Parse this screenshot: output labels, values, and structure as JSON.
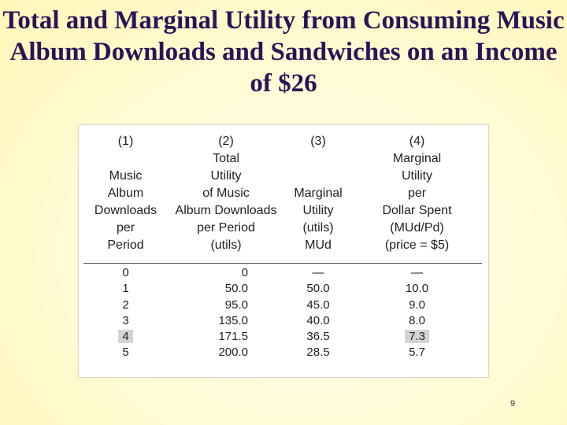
{
  "title": "Total and Marginal Utility from Consuming Music Album Downloads and Sandwiches on an Income of $26",
  "table": {
    "columns": [
      {
        "number": "(1)",
        "lines": [
          "",
          "Music",
          "Album",
          "Downloads",
          "per",
          "Period"
        ]
      },
      {
        "number": "(2)",
        "lines": [
          "Total",
          "Utility",
          "of Music",
          "Album Downloads",
          "per Period",
          "(utils)"
        ]
      },
      {
        "number": "(3)",
        "lines": [
          "",
          "",
          "Marginal",
          "Utility",
          "(utils)",
          "MUd"
        ]
      },
      {
        "number": "(4)",
        "lines": [
          "Marginal",
          "Utility",
          "per",
          "Dollar Spent",
          "(MUd/Pd)",
          "(price = $5)"
        ]
      }
    ],
    "rows": [
      [
        "0",
        "0",
        "—",
        "—"
      ],
      [
        "1",
        "50.0",
        "50.0",
        "10.0"
      ],
      [
        "2",
        "95.0",
        "45.0",
        "9.0"
      ],
      [
        "3",
        "135.0",
        "40.0",
        "8.0"
      ],
      [
        "4",
        "171.5",
        "36.5",
        "7.3"
      ],
      [
        "5",
        "200.0",
        "28.5",
        "5.7"
      ]
    ],
    "highlight_color": "#d4d4d4"
  },
  "page_number": "9"
}
